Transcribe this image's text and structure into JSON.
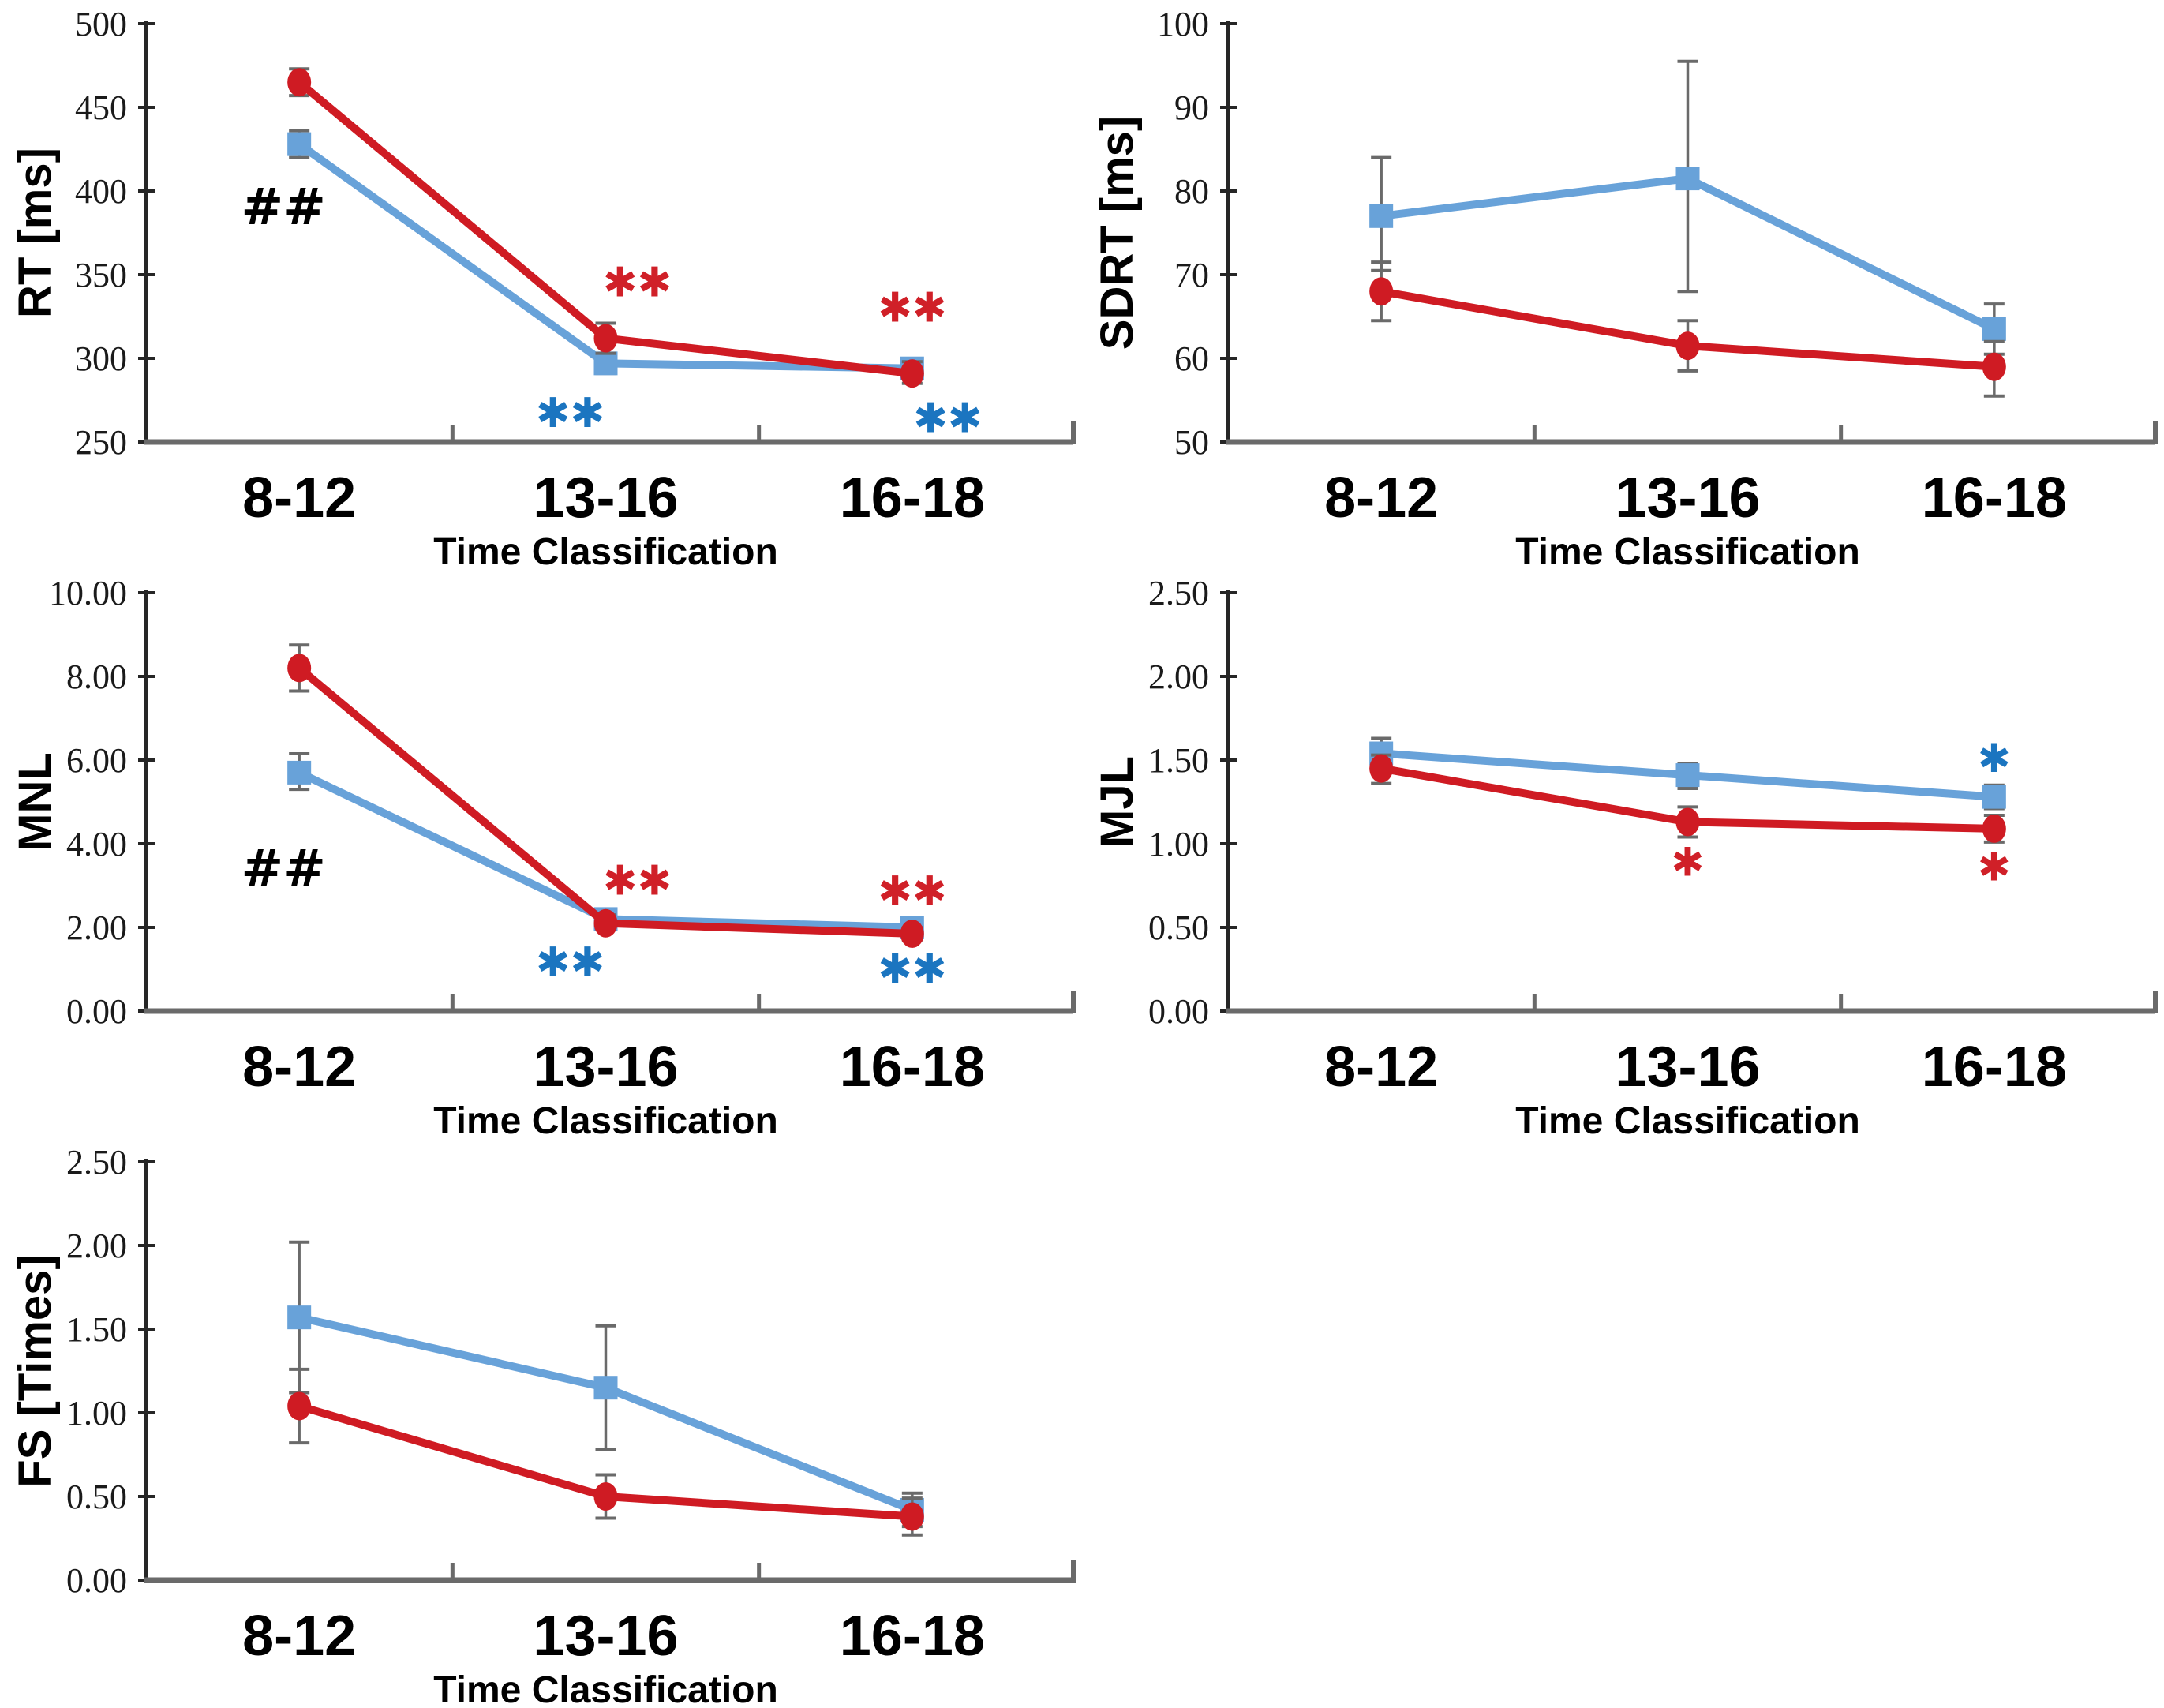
{
  "figure": {
    "background": "#ffffff",
    "xlabel_shared": "Time Classification",
    "categories_shared": [
      "8-12",
      "13-16",
      "16-18"
    ]
  },
  "colors": {
    "red_series": "#cf1b23",
    "blue_series": "#68a2d9",
    "red_asterisk": "#d02028",
    "blue_asterisk": "#1b75c0",
    "hash_black": "#000000",
    "error_bar": "#6a6a6a",
    "x_axis": "#6a6a6a",
    "y_axis": "#262626"
  },
  "chart_data": [
    {
      "type": "line",
      "id": "rt",
      "ylabel": "RT [ms]",
      "xlabel": "Time Classification",
      "ylim": [
        250,
        500
      ],
      "ystep": 50,
      "ydecimals": 0,
      "grid": false,
      "legend": "none",
      "categories": [
        "8-12",
        "13-16",
        "16-18"
      ],
      "series": [
        {
          "name": "blue-squares",
          "marker": "square",
          "color": "#68a2d9",
          "values": [
            428,
            297,
            294
          ],
          "err_lo": [
            420,
            291,
            288
          ],
          "err_hi": [
            436,
            303,
            300
          ]
        },
        {
          "name": "red-circles",
          "marker": "circle",
          "color": "#cf1b23",
          "values": [
            465,
            312,
            291
          ],
          "err_lo": [
            457,
            303,
            285
          ],
          "err_hi": [
            473,
            321,
            298
          ]
        }
      ],
      "annotations": [
        {
          "text": "##",
          "color": "#000000",
          "cat": 0,
          "value": 390,
          "dx": -20,
          "size": 64,
          "font": "sans"
        },
        {
          "text": "✱✱",
          "color": "#d02028",
          "cat": 1,
          "value": 345,
          "dx": 40,
          "size": 52
        },
        {
          "text": "✱✱",
          "color": "#1b75c0",
          "cat": 1,
          "value": 267,
          "dx": -45,
          "size": 52
        },
        {
          "text": "✱✱",
          "color": "#d02028",
          "cat": 2,
          "value": 330,
          "dx": 0,
          "size": 52
        },
        {
          "text": "✱✱",
          "color": "#1b75c0",
          "cat": 2,
          "value": 264,
          "dx": 45,
          "size": 52
        }
      ]
    },
    {
      "type": "line",
      "id": "sdrt",
      "ylabel": "SDRT [ms]",
      "xlabel": "Time Classification",
      "ylim": [
        50,
        100
      ],
      "ystep": 10,
      "ydecimals": 0,
      "grid": false,
      "legend": "none",
      "categories": [
        "8-12",
        "13-16",
        "16-18"
      ],
      "series": [
        {
          "name": "blue-squares",
          "marker": "square",
          "color": "#68a2d9",
          "values": [
            77,
            81.5,
            63.5
          ],
          "err_lo": [
            70.5,
            68,
            60.5
          ],
          "err_hi": [
            84,
            95.5,
            66.5
          ]
        },
        {
          "name": "red-circles",
          "marker": "circle",
          "color": "#cf1b23",
          "values": [
            68,
            61.5,
            59
          ],
          "err_lo": [
            64.5,
            58.5,
            55.5
          ],
          "err_hi": [
            71.5,
            64.5,
            62
          ]
        }
      ],
      "annotations": []
    },
    {
      "type": "line",
      "id": "mnl",
      "ylabel": "MNL",
      "xlabel": "Time Classification",
      "ylim": [
        0,
        10
      ],
      "ystep": 2,
      "ydecimals": 2,
      "grid": false,
      "legend": "none",
      "categories": [
        "8-12",
        "13-16",
        "16-18"
      ],
      "series": [
        {
          "name": "blue-squares",
          "marker": "square",
          "color": "#68a2d9",
          "values": [
            5.7,
            2.2,
            2.0
          ],
          "err_lo": [
            5.3,
            2.05,
            1.85
          ],
          "err_hi": [
            6.15,
            2.35,
            2.15
          ]
        },
        {
          "name": "red-circles",
          "marker": "circle",
          "color": "#cf1b23",
          "values": [
            8.2,
            2.1,
            1.85
          ],
          "err_lo": [
            7.65,
            1.95,
            1.7
          ],
          "err_hi": [
            8.75,
            2.3,
            2.0
          ]
        }
      ],
      "annotations": [
        {
          "text": "##",
          "color": "#000000",
          "cat": 0,
          "value": 3.4,
          "dx": -20,
          "size": 64,
          "font": "sans"
        },
        {
          "text": "✱✱",
          "color": "#d02028",
          "cat": 1,
          "value": 3.1,
          "dx": 40,
          "size": 52
        },
        {
          "text": "✱✱",
          "color": "#1b75c0",
          "cat": 1,
          "value": 1.15,
          "dx": -45,
          "size": 52
        },
        {
          "text": "✱✱",
          "color": "#d02028",
          "cat": 2,
          "value": 2.85,
          "dx": 0,
          "size": 52
        },
        {
          "text": "✱✱",
          "color": "#1b75c0",
          "cat": 2,
          "value": 1.0,
          "dx": 0,
          "size": 52
        }
      ]
    },
    {
      "type": "line",
      "id": "mjl",
      "ylabel": "MJL",
      "xlabel": "Time Classification",
      "ylim": [
        0,
        2.5
      ],
      "ystep": 0.5,
      "ydecimals": 2,
      "grid": false,
      "legend": "none",
      "categories": [
        "8-12",
        "13-16",
        "16-18"
      ],
      "series": [
        {
          "name": "blue-squares",
          "marker": "square",
          "color": "#68a2d9",
          "values": [
            1.54,
            1.41,
            1.28
          ],
          "err_lo": [
            1.45,
            1.33,
            1.21
          ],
          "err_hi": [
            1.63,
            1.48,
            1.35
          ]
        },
        {
          "name": "red-circles",
          "marker": "circle",
          "color": "#cf1b23",
          "values": [
            1.45,
            1.13,
            1.09
          ],
          "err_lo": [
            1.36,
            1.04,
            1.01
          ],
          "err_hi": [
            1.53,
            1.22,
            1.17
          ]
        }
      ],
      "annotations": [
        {
          "text": "✱",
          "color": "#d02028",
          "cat": 1,
          "value": 0.89,
          "dx": 0,
          "size": 50
        },
        {
          "text": "✱",
          "color": "#1b75c0",
          "cat": 2,
          "value": 1.51,
          "dx": 0,
          "size": 50
        },
        {
          "text": "✱",
          "color": "#d02028",
          "cat": 2,
          "value": 0.86,
          "dx": 0,
          "size": 50
        }
      ]
    },
    {
      "type": "line",
      "id": "fs",
      "ylabel": "FS [Times]",
      "xlabel": "Time Classification",
      "ylim": [
        0,
        2.5
      ],
      "ystep": 0.5,
      "ydecimals": 2,
      "grid": false,
      "legend": "none",
      "categories": [
        "8-12",
        "13-16",
        "16-18"
      ],
      "series": [
        {
          "name": "blue-squares",
          "marker": "square",
          "color": "#68a2d9",
          "values": [
            1.57,
            1.15,
            0.42
          ],
          "err_lo": [
            1.12,
            0.78,
            0.32
          ],
          "err_hi": [
            2.02,
            1.52,
            0.52
          ]
        },
        {
          "name": "red-circles",
          "marker": "circle",
          "color": "#cf1b23",
          "values": [
            1.04,
            0.5,
            0.38
          ],
          "err_lo": [
            0.82,
            0.37,
            0.27
          ],
          "err_hi": [
            1.26,
            0.63,
            0.49
          ]
        }
      ],
      "annotations": []
    }
  ]
}
